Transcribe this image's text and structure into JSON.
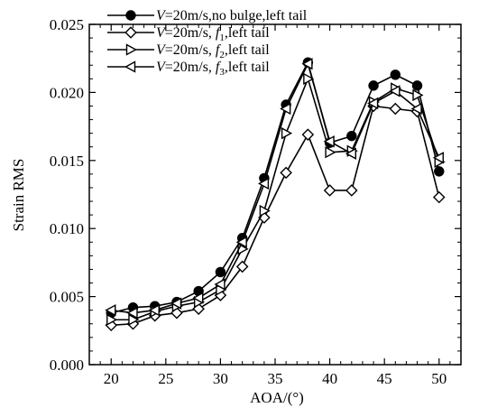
{
  "chart_data": {
    "type": "line",
    "xlabel": "AOA/(°)",
    "ylabel": "Strain RMS",
    "xlim": [
      18,
      52
    ],
    "ylim": [
      0.0,
      0.025
    ],
    "x_ticks": [
      20,
      25,
      30,
      35,
      40,
      45,
      50
    ],
    "x_tick_labels": [
      "20",
      "25",
      "30",
      "35",
      "40",
      "45",
      "50"
    ],
    "y_ticks": [
      0.0,
      0.005,
      0.01,
      0.015,
      0.02,
      0.025
    ],
    "y_tick_labels": [
      "0.000",
      "0.005",
      "0.010",
      "0.015",
      "0.020",
      "0.025"
    ],
    "grid": false,
    "legend_position": "top-left",
    "x": [
      20,
      22,
      24,
      26,
      28,
      30,
      32,
      34,
      36,
      38,
      40,
      42,
      44,
      46,
      48,
      50
    ],
    "series": [
      {
        "legend_parts": [
          [
            "V",
            "italic"
          ],
          [
            "=20m/s,no bulge,left tail",
            "normal"
          ]
        ],
        "marker": "circle-filled",
        "values": [
          0.0038,
          0.0042,
          0.0043,
          0.0046,
          0.0054,
          0.0068,
          0.0093,
          0.0137,
          0.0191,
          0.0222,
          0.0163,
          0.0168,
          0.0205,
          0.0213,
          0.0205,
          0.0142
        ]
      },
      {
        "legend_parts": [
          [
            "V",
            "italic"
          ],
          [
            "=20m/s, ",
            "normal"
          ],
          [
            "f",
            "italic"
          ],
          [
            "1",
            "sub"
          ],
          [
            ",left tail",
            "normal"
          ]
        ],
        "marker": "diamond-open",
        "values": [
          0.0029,
          0.003,
          0.0036,
          0.0038,
          0.0041,
          0.0051,
          0.0072,
          0.0108,
          0.0141,
          0.0169,
          0.0128,
          0.0128,
          0.019,
          0.0188,
          0.0186,
          0.0123
        ]
      },
      {
        "legend_parts": [
          [
            "V",
            "italic"
          ],
          [
            "=20m/s, ",
            "normal"
          ],
          [
            "f",
            "italic"
          ],
          [
            "2",
            "sub"
          ],
          [
            ",left tail",
            "normal"
          ]
        ],
        "marker": "triangle-right-open",
        "values": [
          0.0033,
          0.0033,
          0.0039,
          0.0043,
          0.0046,
          0.0055,
          0.0085,
          0.0113,
          0.017,
          0.021,
          0.0156,
          0.0157,
          0.0193,
          0.0203,
          0.0198,
          0.0149
        ]
      },
      {
        "legend_parts": [
          [
            "V",
            "italic"
          ],
          [
            "=20m/s, ",
            "normal"
          ],
          [
            "f",
            "italic"
          ],
          [
            "3",
            "sub"
          ],
          [
            ",left tail",
            "normal"
          ]
        ],
        "marker": "triangle-left-open",
        "values": [
          0.004,
          0.0038,
          0.004,
          0.0045,
          0.0049,
          0.0059,
          0.009,
          0.0133,
          0.0188,
          0.0221,
          0.0164,
          0.0155,
          0.0192,
          0.0201,
          0.0188,
          0.0152
        ]
      }
    ]
  }
}
